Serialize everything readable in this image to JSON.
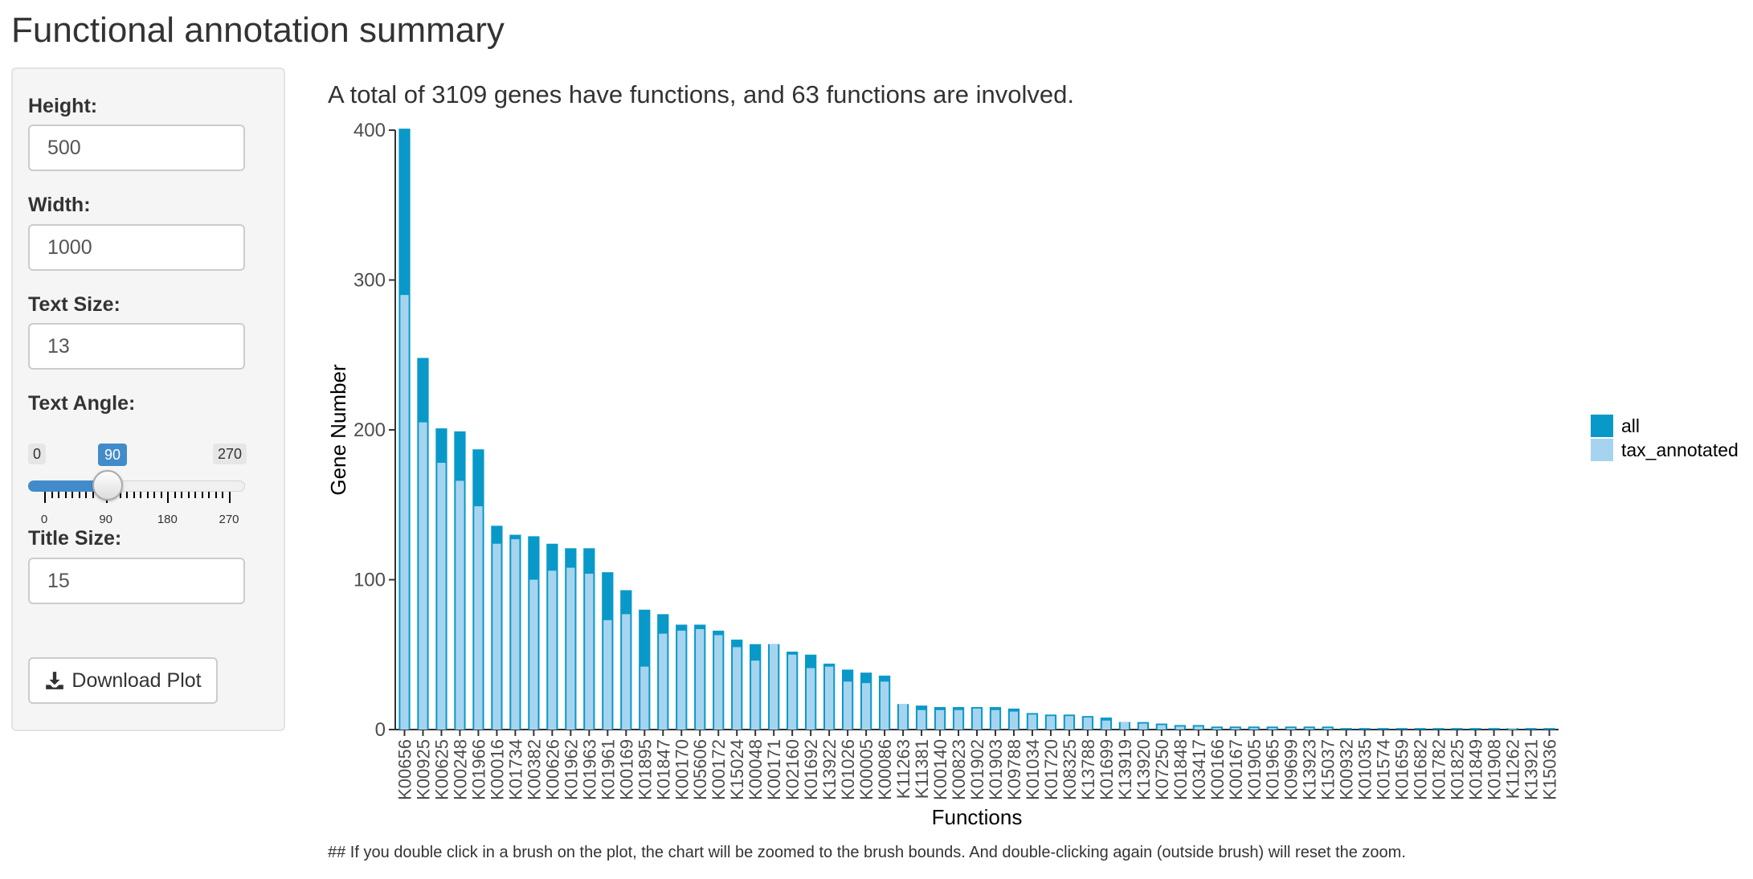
{
  "page": {
    "title": "Functional annotation summary"
  },
  "sidebar": {
    "height": {
      "label": "Height:",
      "value": "500"
    },
    "width": {
      "label": "Width:",
      "value": "1000"
    },
    "text_size": {
      "label": "Text Size:",
      "value": "13"
    },
    "text_angle": {
      "label": "Text Angle:",
      "min": 0,
      "max": 270,
      "value": 90,
      "min_label": "0",
      "max_label": "270",
      "value_label": "90",
      "tick_labels": [
        "0",
        "90",
        "180",
        "270"
      ]
    },
    "title_size": {
      "label": "Title Size:",
      "value": "15"
    },
    "download_button": {
      "label": "Download Plot",
      "icon": "download-icon"
    }
  },
  "summary": "A total of 3109 genes have functions, and 63 functions are involved.",
  "footnote": "## If you double click in a brush on the plot, the chart will be zoomed to the brush bounds. And double-clicking again (outside brush) will reset the zoom.",
  "colors": {
    "all": "#0899c9",
    "tax_annotated": "#a6d4ef",
    "accent": "#428bca"
  },
  "chart_data": {
    "type": "bar",
    "xlabel": "Functions",
    "ylabel": "Gene Number",
    "ylim": [
      0,
      400
    ],
    "yticks": [
      0,
      100,
      200,
      300,
      400
    ],
    "grid": false,
    "legend_position": "right",
    "categories": [
      "K00656",
      "K00925",
      "K00625",
      "K00248",
      "K01966",
      "K00016",
      "K01734",
      "K00382",
      "K00626",
      "K01962",
      "K01963",
      "K01961",
      "K00169",
      "K01895",
      "K01847",
      "K00170",
      "K05606",
      "K00172",
      "K15024",
      "K00048",
      "K00171",
      "K02160",
      "K01692",
      "K13922",
      "K01026",
      "K00005",
      "K00086",
      "K11263",
      "K11381",
      "K00140",
      "K00823",
      "K01902",
      "K01903",
      "K09788",
      "K01034",
      "K01720",
      "K08325",
      "K13788",
      "K01699",
      "K13919",
      "K13920",
      "K07250",
      "K01848",
      "K03417",
      "K00166",
      "K00167",
      "K01905",
      "K01965",
      "K09699",
      "K13923",
      "K15037",
      "K00932",
      "K01035",
      "K01574",
      "K01659",
      "K01682",
      "K01782",
      "K01825",
      "K01849",
      "K01908",
      "K11262",
      "K13921",
      "K15036"
    ],
    "series": [
      {
        "name": "all",
        "values": [
          401,
          248,
          201,
          199,
          187,
          136,
          130,
          129,
          124,
          121,
          121,
          105,
          93,
          80,
          77,
          70,
          70,
          66,
          60,
          57,
          57,
          52,
          50,
          44,
          40,
          38,
          36,
          17,
          16,
          15,
          15,
          15,
          15,
          14,
          11,
          10,
          10,
          9,
          8,
          5,
          5,
          4,
          3,
          3,
          2,
          2,
          2,
          2,
          2,
          2,
          2,
          1,
          1,
          1,
          1,
          1,
          1,
          1,
          1,
          1,
          1,
          1,
          1
        ]
      },
      {
        "name": "tax_annotated",
        "values": [
          290,
          205,
          178,
          166,
          149,
          124,
          127,
          100,
          106,
          108,
          104,
          73,
          77,
          42,
          64,
          66,
          67,
          63,
          55,
          46,
          57,
          50,
          41,
          42,
          32,
          31,
          32,
          17,
          13,
          13,
          13,
          14,
          13,
          12,
          10,
          9,
          9,
          8,
          6,
          5,
          4,
          3,
          2,
          2,
          1,
          1,
          1,
          1,
          1,
          1,
          1,
          0,
          0,
          0,
          0,
          0,
          0,
          0,
          0,
          0,
          1,
          0,
          0
        ]
      }
    ]
  }
}
